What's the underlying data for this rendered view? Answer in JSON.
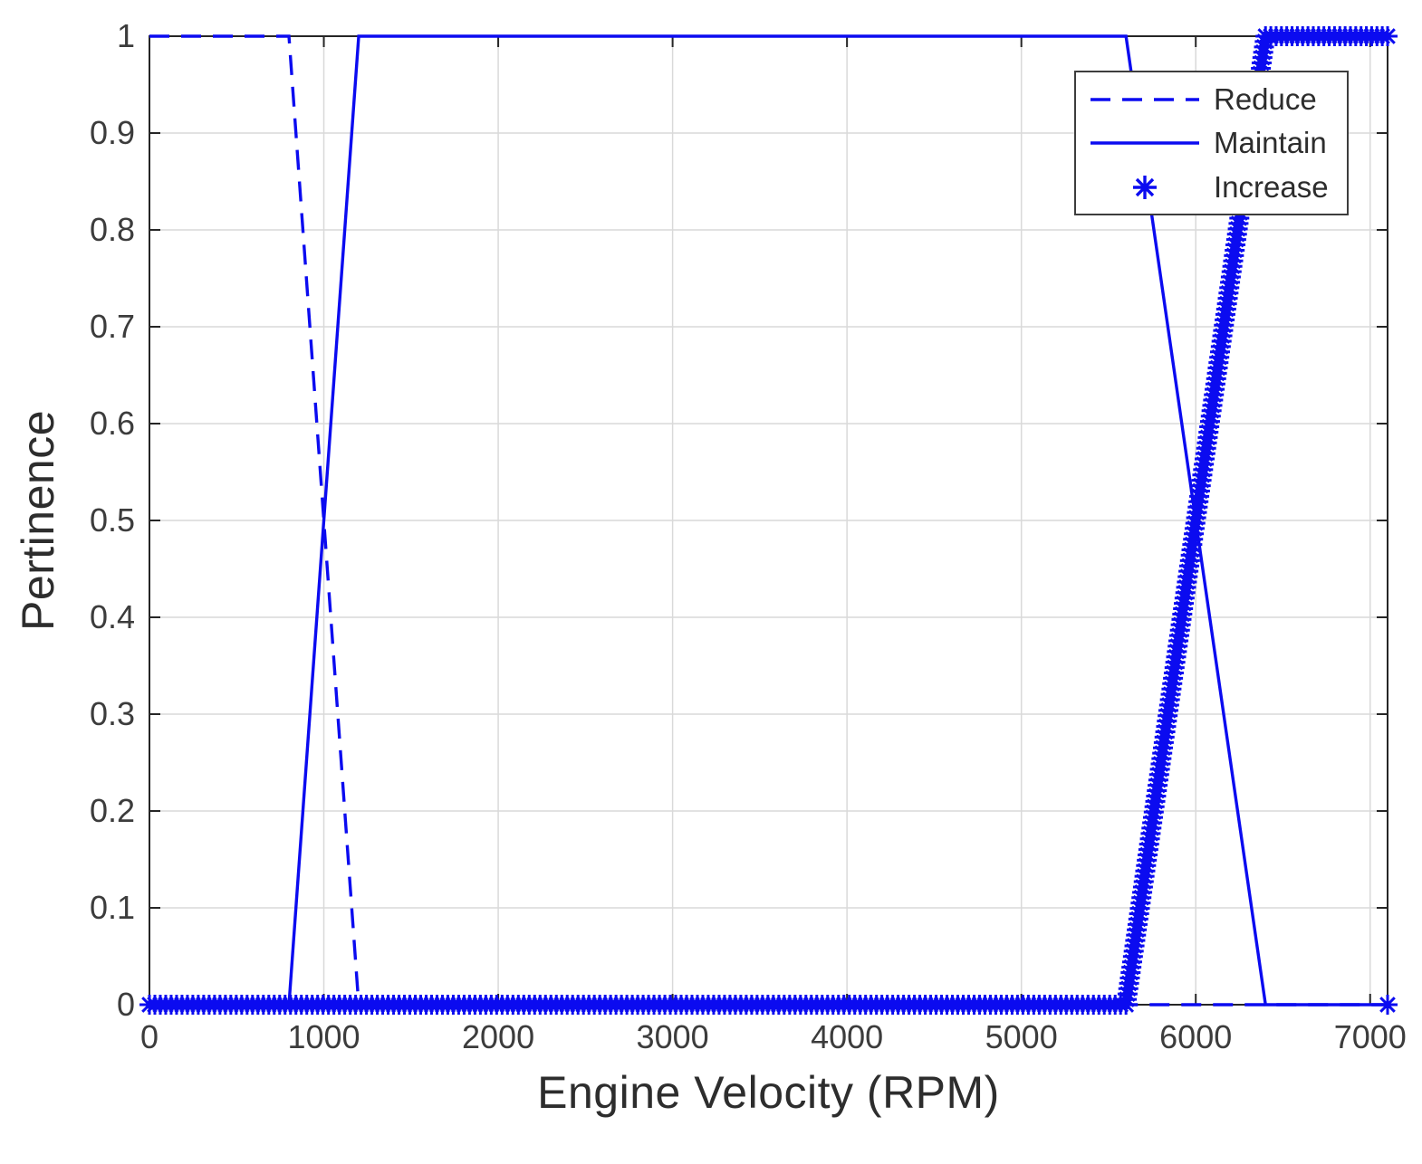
{
  "chart_data": {
    "type": "line",
    "title": "",
    "xlabel": "Engine Velocity (RPM)",
    "ylabel": "Pertinence",
    "xlim": [
      0,
      7100
    ],
    "ylim": [
      0,
      1
    ],
    "xticks": [
      0,
      1000,
      2000,
      3000,
      4000,
      5000,
      6000,
      7000
    ],
    "yticks": [
      0,
      0.1,
      0.2,
      0.3,
      0.4,
      0.5,
      0.6,
      0.7,
      0.8,
      0.9,
      1
    ],
    "grid": true,
    "line_color": "#0b0bf0",
    "grid_color": "#d9d9d9",
    "axis_color": "#262626",
    "tick_label_color": "#3c3c3c",
    "series": [
      {
        "name": "Reduce",
        "style": "dashed",
        "points": [
          [
            0,
            1
          ],
          [
            800,
            1
          ],
          [
            1200,
            0
          ],
          [
            7100,
            0
          ]
        ]
      },
      {
        "name": "Maintain",
        "style": "solid",
        "points": [
          [
            0,
            0
          ],
          [
            800,
            0
          ],
          [
            1200,
            1
          ],
          [
            5600,
            1
          ],
          [
            6400,
            0
          ],
          [
            7100,
            0
          ]
        ]
      },
      {
        "name": "Increase",
        "style": "markers",
        "marker": "asterisk",
        "points": [
          [
            0,
            0
          ],
          [
            5600,
            0
          ],
          [
            6400,
            1
          ],
          [
            7100,
            1
          ]
        ],
        "extra_markers": [
          [
            7100,
            0
          ]
        ]
      }
    ],
    "legend": {
      "position": "top-right",
      "entries": [
        {
          "label": "Reduce",
          "style": "dashed"
        },
        {
          "label": "Maintain",
          "style": "solid"
        },
        {
          "label": "Increase",
          "style": "markers"
        }
      ]
    }
  }
}
